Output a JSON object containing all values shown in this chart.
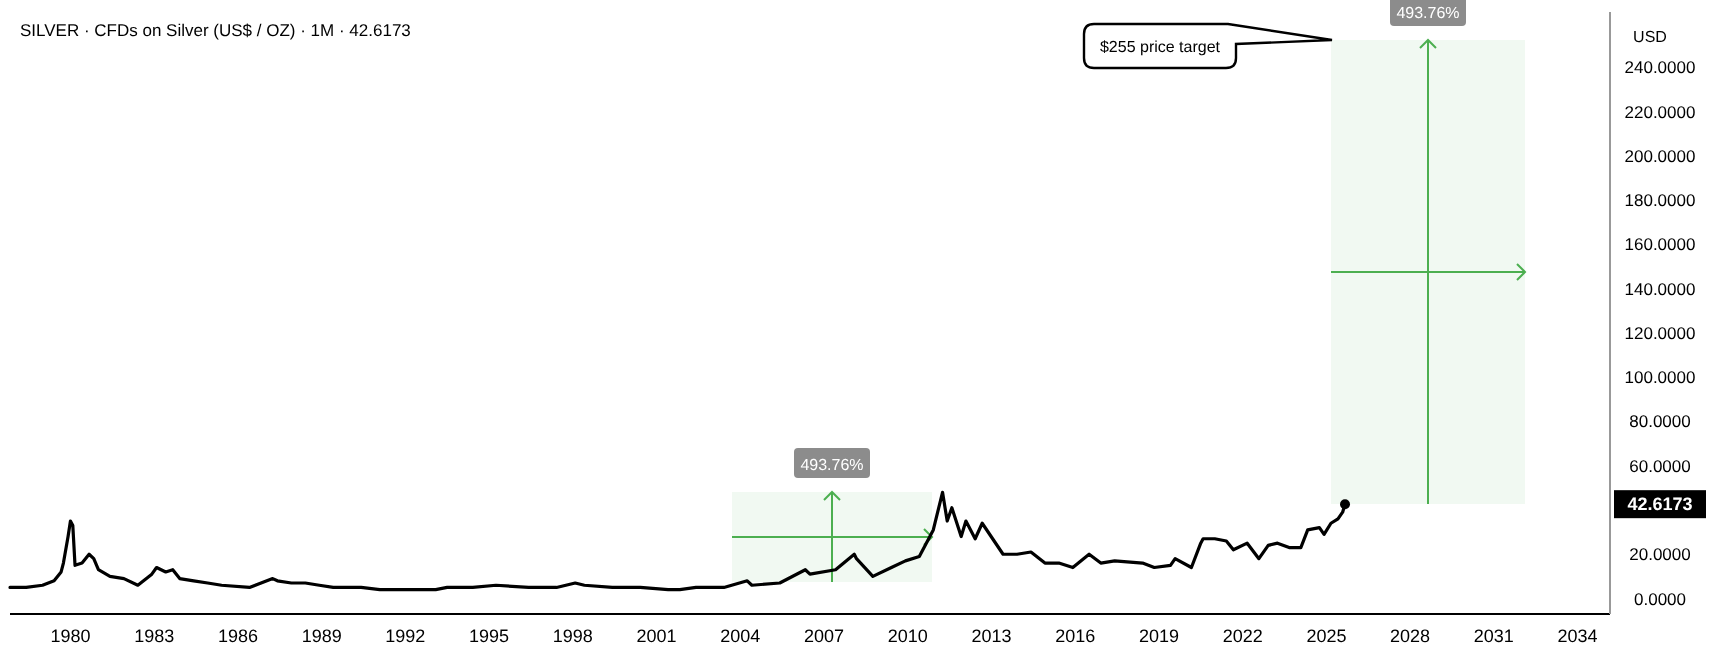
{
  "chart_data": {
    "type": "line",
    "title": "SILVER · CFDs on Silver (US$ / OZ) · 1M · 42.6173",
    "ylabel": "USD",
    "x": [
      "1977-11",
      "1978-06",
      "1979-01",
      "1979-06",
      "1979-09",
      "1979-10",
      "1979-12",
      "1980-01",
      "1980-02",
      "1980-03",
      "1980-06",
      "1980-09",
      "1980-11",
      "1981-01",
      "1981-06",
      "1981-12",
      "1982-06",
      "1982-12",
      "1983-02",
      "1983-06",
      "1983-09",
      "1983-12",
      "1984-06",
      "1984-12",
      "1985-06",
      "1986-06",
      "1987-04",
      "1987-06",
      "1987-12",
      "1988-06",
      "1988-12",
      "1989-06",
      "1990-06",
      "1991-02",
      "1991-12",
      "1992-06",
      "1993-02",
      "1993-07",
      "1994-06",
      "1995-04",
      "1996-06",
      "1997-06",
      "1998-02",
      "1998-06",
      "1999-06",
      "2000-06",
      "2001-06",
      "2001-11",
      "2002-06",
      "2003-06",
      "2004-04",
      "2004-06",
      "2005-06",
      "2006-05",
      "2006-07",
      "2007-06",
      "2008-02",
      "2008-03",
      "2008-10",
      "2009-06",
      "2009-12",
      "2010-06",
      "2010-12",
      "2011-04",
      "2011-06",
      "2011-08",
      "2011-12",
      "2012-02",
      "2012-06",
      "2012-09",
      "2013-06",
      "2013-12",
      "2014-06",
      "2014-12",
      "2015-06",
      "2015-12",
      "2016-07",
      "2016-12",
      "2017-06",
      "2018-06",
      "2018-11",
      "2019-06",
      "2019-08",
      "2020-03",
      "2020-07",
      "2020-08",
      "2021-01",
      "2021-06",
      "2021-09",
      "2022-03",
      "2022-08",
      "2022-12",
      "2023-04",
      "2023-09",
      "2024-02",
      "2024-05",
      "2024-10",
      "2024-12",
      "2025-03",
      "2025-06",
      "2025-08",
      "2025-09"
    ],
    "series": [
      {
        "color": "#000000",
        "values": [
          5,
          5,
          6,
          8,
          12,
          16,
          28,
          35,
          33,
          15,
          16,
          20,
          18,
          13,
          10,
          9,
          6,
          11,
          14,
          12,
          13,
          9,
          8,
          7,
          6,
          5,
          9,
          8,
          7,
          7,
          6,
          5,
          5,
          4,
          4,
          4,
          4,
          5,
          5,
          6,
          5,
          5,
          7,
          6,
          5,
          5,
          4,
          4,
          5,
          5,
          8,
          6,
          7,
          13,
          11,
          13,
          20,
          18,
          10,
          14,
          17,
          19,
          31,
          48,
          35,
          41,
          28,
          35,
          27,
          34,
          20,
          20,
          21,
          16,
          16,
          14,
          20,
          16,
          17,
          16,
          14,
          15,
          18,
          14,
          25,
          27,
          27,
          26,
          22,
          25,
          18,
          24,
          25,
          23,
          23,
          31,
          32,
          29,
          34,
          36,
          39,
          42.6173
        ]
      }
    ],
    "xlim": [
      "1977-11",
      "2035-03"
    ],
    "xticks": [
      "1980",
      "1983",
      "1986",
      "1989",
      "1992",
      "1995",
      "1998",
      "2001",
      "2004",
      "2007",
      "2010",
      "2013",
      "2016",
      "2019",
      "2022",
      "2025",
      "2028",
      "2031",
      "2034"
    ],
    "ylim": [
      -7,
      265
    ],
    "yticks": [
      {
        "value": 0,
        "label": "0.0000"
      },
      {
        "value": 20,
        "label": "20.0000"
      },
      {
        "value": 42.6173,
        "label": "42.6173"
      },
      {
        "value": 60,
        "label": "60.0000"
      },
      {
        "value": 80,
        "label": "80.0000"
      },
      {
        "value": 100,
        "label": "100.0000"
      },
      {
        "value": 120,
        "label": "120.0000"
      },
      {
        "value": 140,
        "label": "140.0000"
      },
      {
        "value": 160,
        "label": "160.0000"
      },
      {
        "value": 180,
        "label": "180.0000"
      },
      {
        "value": 200,
        "label": "200.0000"
      },
      {
        "value": 220,
        "label": "220.0000"
      },
      {
        "value": 240,
        "label": "240.0000"
      }
    ],
    "grid": false,
    "marker": "none",
    "line_style": "solid",
    "annotations": [
      "493.76%",
      "493.76%",
      "$255 price target"
    ]
  }
}
